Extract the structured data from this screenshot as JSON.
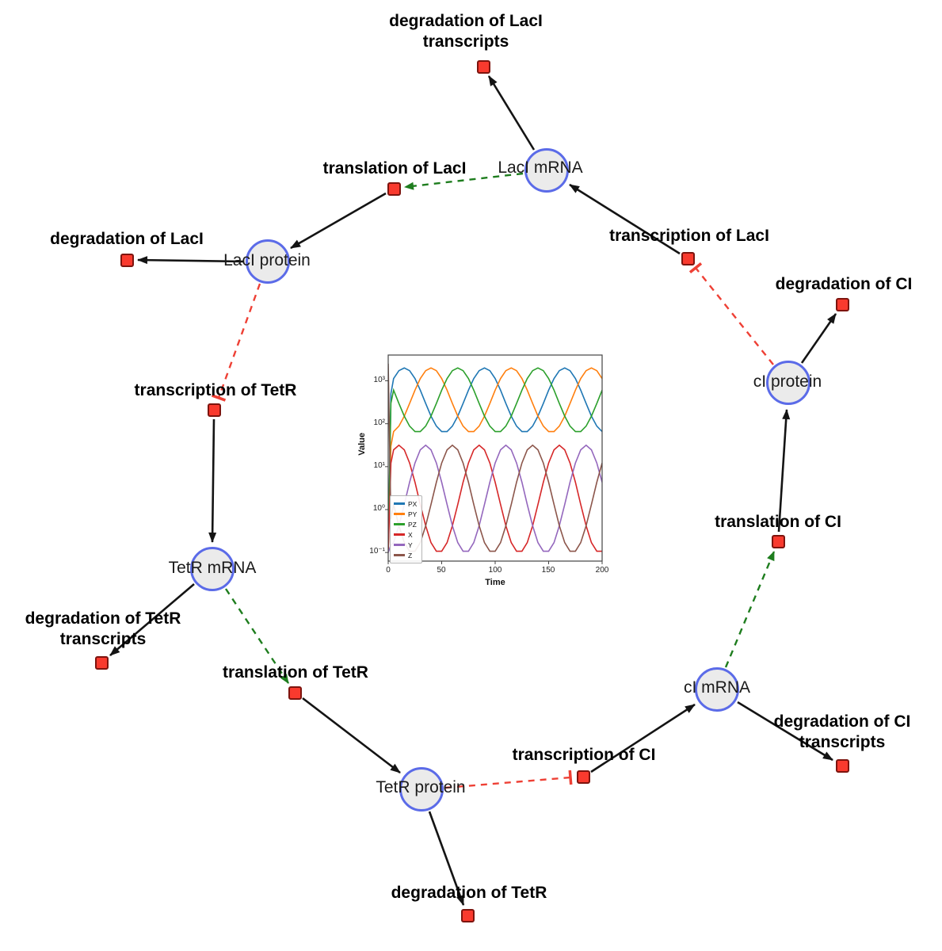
{
  "diagram": {
    "species": [
      {
        "id": "laci_mrna",
        "label": "LacI mRNA"
      },
      {
        "id": "laci_protein",
        "label": "LacI protein"
      },
      {
        "id": "tetr_mrna",
        "label": "TetR mRNA"
      },
      {
        "id": "tetr_protein",
        "label": "TetR protein"
      },
      {
        "id": "ci_mrna",
        "label": "cI mRNA"
      },
      {
        "id": "ci_protein",
        "label": "cI protein"
      }
    ],
    "reactions": [
      {
        "id": "deg_laci_tx",
        "label": "degradation of LacI transcripts"
      },
      {
        "id": "translation_laci",
        "label": "translation of LacI"
      },
      {
        "id": "transcription_laci",
        "label": "transcription of LacI"
      },
      {
        "id": "deg_laci",
        "label": "degradation of LacI"
      },
      {
        "id": "deg_ci",
        "label": "degradation of CI"
      },
      {
        "id": "transcription_tetr",
        "label": "transcription of TetR"
      },
      {
        "id": "translation_ci",
        "label": "translation of CI"
      },
      {
        "id": "deg_tetr_tx",
        "label": "degradation of TetR transcripts"
      },
      {
        "id": "translation_tetr",
        "label": "translation of TetR"
      },
      {
        "id": "deg_ci_tx",
        "label": "degradation of CI transcripts"
      },
      {
        "id": "transcription_ci",
        "label": "transcription of CI"
      },
      {
        "id": "deg_tetr",
        "label": "degradation of TetR"
      }
    ],
    "edges": [
      {
        "from": "transcription_laci",
        "to": "laci_mrna",
        "type": "product"
      },
      {
        "from": "translation_laci",
        "to": "laci_protein",
        "type": "product"
      },
      {
        "from": "transcription_tetr",
        "to": "tetr_mrna",
        "type": "product"
      },
      {
        "from": "translation_tetr",
        "to": "tetr_protein",
        "type": "product"
      },
      {
        "from": "transcription_ci",
        "to": "ci_mrna",
        "type": "product"
      },
      {
        "from": "translation_ci",
        "to": "ci_protein",
        "type": "product"
      },
      {
        "from": "laci_mrna",
        "to": "deg_laci_tx",
        "type": "reactant"
      },
      {
        "from": "laci_protein",
        "to": "deg_laci",
        "type": "reactant"
      },
      {
        "from": "tetr_mrna",
        "to": "deg_tetr_tx",
        "type": "reactant"
      },
      {
        "from": "tetr_protein",
        "to": "deg_tetr",
        "type": "reactant"
      },
      {
        "from": "ci_mrna",
        "to": "deg_ci_tx",
        "type": "reactant"
      },
      {
        "from": "ci_protein",
        "to": "deg_ci",
        "type": "reactant"
      },
      {
        "from": "laci_mrna",
        "to": "translation_laci",
        "type": "modifier"
      },
      {
        "from": "tetr_mrna",
        "to": "translation_tetr",
        "type": "modifier"
      },
      {
        "from": "ci_mrna",
        "to": "translation_ci",
        "type": "modifier"
      },
      {
        "from": "laci_protein",
        "to": "transcription_tetr",
        "type": "inhibition"
      },
      {
        "from": "tetr_protein",
        "to": "transcription_ci",
        "type": "inhibition"
      },
      {
        "from": "ci_protein",
        "to": "transcription_laci",
        "type": "inhibition"
      }
    ],
    "colors": {
      "species_fill": "#ebebeb",
      "species_border": "#5b6be8",
      "reaction_fill": "#f93a2e",
      "reaction_border": "#7d140e",
      "edge": "#141414",
      "modifier": "#1e7d1e",
      "inhibition": "#ee4035"
    }
  },
  "chart_data": {
    "type": "line",
    "xlabel": "Time",
    "ylabel": "Value",
    "xlim": [
      0,
      200
    ],
    "ylog_lim": [
      -1.2,
      3.6
    ],
    "yscale": "log",
    "grid": false,
    "legend_position": "lower left",
    "x_ticks": [
      0,
      50,
      100,
      150,
      200
    ],
    "y_tick_labels": [
      "10³",
      "10²",
      "10¹",
      "10⁰",
      "10⁻¹"
    ],
    "y_tick_logs": [
      3,
      2,
      1,
      0,
      -1
    ],
    "x": [
      0,
      2.5,
      5,
      10,
      15,
      20,
      25,
      30,
      35,
      40,
      45,
      50,
      55,
      60,
      65,
      70,
      75,
      80,
      85,
      90,
      95,
      100,
      105,
      110,
      115,
      120,
      125,
      130,
      135,
      140,
      145,
      150,
      155,
      160,
      165,
      170,
      175,
      180,
      185,
      190,
      195,
      200
    ],
    "series": [
      {
        "name": "PX",
        "color": "#1f77b4",
        "values": [
          0.1,
          500,
          1127,
          1720,
          1995,
          1720,
          1127,
          605,
          296,
          150,
          88,
          65.5,
          65.5,
          88,
          150,
          296,
          605,
          1127,
          1720,
          1995,
          1720,
          1127,
          605,
          296,
          150,
          88,
          65.5,
          65.5,
          88,
          150,
          296,
          605,
          1127,
          1720,
          1995,
          1720,
          1127,
          605,
          296,
          150,
          88,
          65.5
        ]
      },
      {
        "name": "PY",
        "color": "#ff7f0e",
        "values": [
          0.1,
          30,
          65.5,
          88,
          150,
          296,
          605,
          1127,
          1720,
          1995,
          1720,
          1127,
          605,
          296,
          150,
          88,
          65.5,
          65.5,
          88,
          150,
          296,
          605,
          1127,
          1720,
          1995,
          1720,
          1127,
          605,
          296,
          150,
          88,
          65.5,
          65.5,
          88,
          150,
          296,
          605,
          1127,
          1720,
          1995,
          1720,
          1127
        ]
      },
      {
        "name": "PZ",
        "color": "#2ca02c",
        "values": [
          0.1,
          300,
          605,
          296,
          150,
          88,
          65.5,
          65.5,
          88,
          150,
          296,
          605,
          1127,
          1720,
          1995,
          1720,
          1127,
          605,
          296,
          150,
          88,
          65.5,
          65.5,
          88,
          150,
          296,
          605,
          1127,
          1720,
          1995,
          1720,
          1127,
          605,
          296,
          150,
          88,
          65.5,
          65.5,
          88,
          150,
          296,
          605
        ]
      },
      {
        "name": "X",
        "color": "#d62728",
        "values": [
          0.1,
          12,
          24.7,
          31.6,
          24.7,
          12.2,
          4.33,
          1.31,
          0.42,
          0.17,
          0.107,
          0.107,
          0.17,
          0.42,
          1.31,
          4.33,
          12.2,
          24.7,
          31.6,
          24.7,
          12.2,
          4.33,
          1.31,
          0.42,
          0.17,
          0.107,
          0.107,
          0.17,
          0.42,
          1.31,
          4.33,
          12.2,
          24.7,
          31.6,
          24.7,
          12.2,
          4.33,
          1.31,
          0.42,
          0.17,
          0.107,
          0.107
        ]
      },
      {
        "name": "Y",
        "color": "#9467bd",
        "values": [
          0.1,
          0.15,
          0.17,
          0.42,
          1.31,
          4.33,
          12.2,
          24.7,
          31.6,
          24.7,
          12.2,
          4.33,
          1.31,
          0.42,
          0.17,
          0.107,
          0.107,
          0.17,
          0.42,
          1.31,
          4.33,
          12.2,
          24.7,
          31.6,
          24.7,
          12.2,
          4.33,
          1.31,
          0.42,
          0.17,
          0.107,
          0.107,
          0.17,
          0.42,
          1.31,
          4.33,
          12.2,
          24.7,
          31.6,
          24.7,
          12.2,
          4.33
        ]
      },
      {
        "name": "Z",
        "color": "#8c564b",
        "values": [
          2500,
          0.6,
          1.31,
          0.42,
          0.17,
          0.107,
          0.107,
          0.17,
          0.42,
          1.31,
          4.33,
          12.2,
          24.7,
          31.6,
          24.7,
          12.2,
          4.33,
          1.31,
          0.42,
          0.17,
          0.107,
          0.107,
          0.17,
          0.42,
          1.31,
          4.33,
          12.2,
          24.7,
          31.6,
          24.7,
          12.2,
          4.33,
          1.31,
          0.42,
          0.17,
          0.107,
          0.107,
          0.17,
          0.42,
          1.31,
          4.33,
          12.2
        ]
      }
    ]
  }
}
